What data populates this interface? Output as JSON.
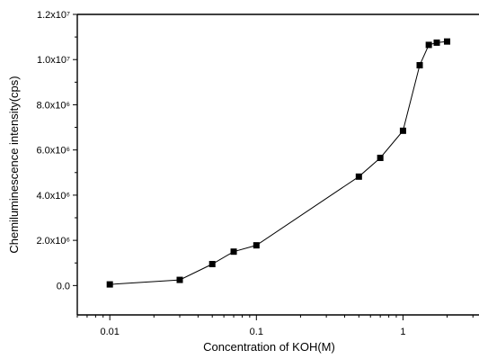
{
  "chart_data": {
    "type": "line",
    "title": "",
    "xlabel": "Concentration of KOH(M)",
    "ylabel": "Chemiluminescence intensity(cps)",
    "x_scale": "log",
    "xlim": [
      0.006,
      3.3
    ],
    "ylim": [
      -1300000,
      12000000
    ],
    "grid": false,
    "legend": "none",
    "x_ticks": [
      {
        "value": 0.01,
        "label": "0.01"
      },
      {
        "value": 0.1,
        "label": "0.1"
      },
      {
        "value": 1,
        "label": "1"
      }
    ],
    "y_ticks": [
      {
        "value": 0,
        "label": "0.0"
      },
      {
        "value": 2000000,
        "label": "2.0x10⁶"
      },
      {
        "value": 4000000,
        "label": "4.0x10⁶"
      },
      {
        "value": 6000000,
        "label": "6.0x10⁶"
      },
      {
        "value": 8000000,
        "label": "8.0x10⁶"
      },
      {
        "value": 10000000,
        "label": "1.0x10⁷"
      },
      {
        "value": 12000000,
        "label": "1.2x10⁷"
      }
    ],
    "series": [
      {
        "marker": "square",
        "color": "#000000",
        "x": [
          0.01,
          0.03,
          0.05,
          0.07,
          0.1,
          0.5,
          0.7,
          1.0,
          1.3,
          1.5,
          1.7,
          2.0
        ],
        "y": [
          50000,
          250000,
          950000,
          1500000,
          1780000,
          4820000,
          5650000,
          6850000,
          9750000,
          10650000,
          10750000,
          10800000
        ]
      }
    ]
  }
}
